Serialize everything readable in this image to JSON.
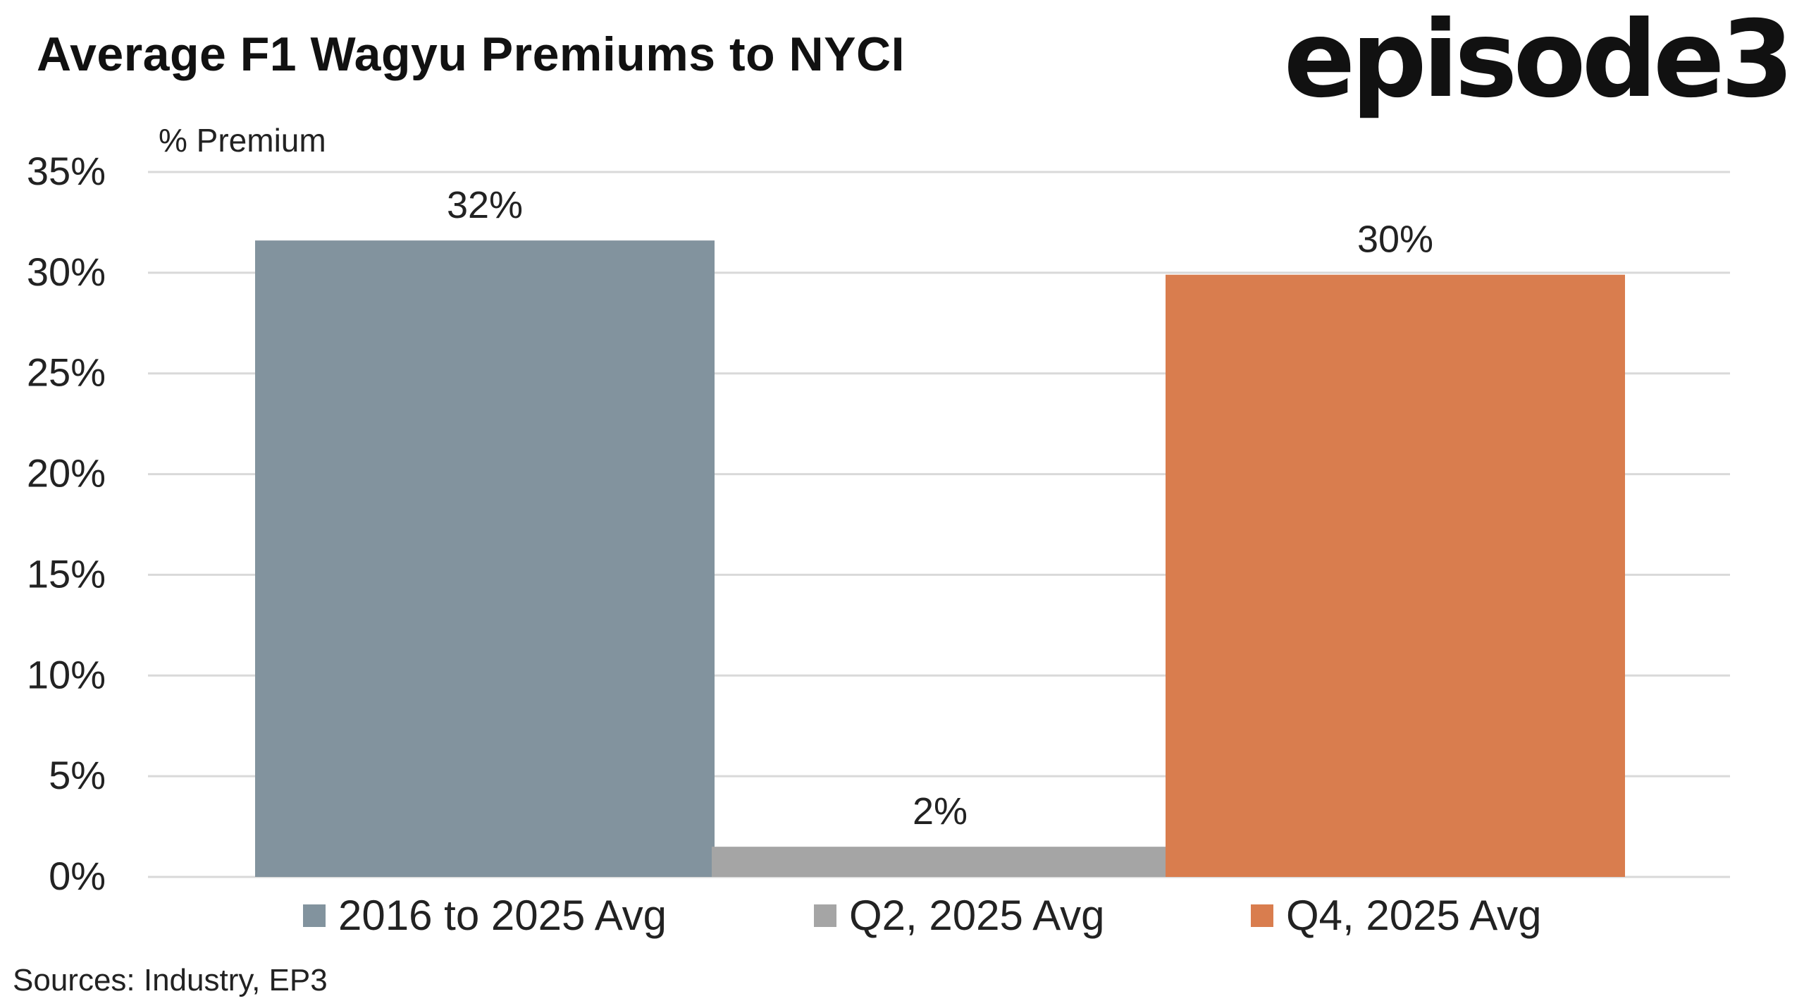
{
  "chart_data": {
    "type": "bar",
    "title": "Average F1 Wagyu Premiums to NYCI",
    "ylabel": "% Premium",
    "categories": [
      "2016 to 2025 Avg",
      "Q2, 2025 Avg",
      "Q4, 2025 Avg"
    ],
    "values": [
      31.6,
      1.5,
      29.9
    ],
    "data_labels": [
      "32%",
      "2%",
      "30%"
    ],
    "colors": [
      "#82939e",
      "#a5a5a5",
      "#d97d4e"
    ],
    "ylim": [
      0,
      35
    ],
    "yticks": [
      0,
      5,
      10,
      15,
      20,
      25,
      30,
      35
    ],
    "ytick_labels": [
      "0%",
      "5%",
      "10%",
      "15%",
      "20%",
      "25%",
      "30%",
      "35%"
    ],
    "grid": true,
    "legend": "bottom",
    "legend_entries": [
      "2016 to 2025 Avg",
      "Q2, 2025 Avg",
      "Q4, 2025 Avg"
    ]
  },
  "brand": {
    "logo_text": "episode3"
  },
  "footer": {
    "source": "Sources: Industry, EP3"
  }
}
